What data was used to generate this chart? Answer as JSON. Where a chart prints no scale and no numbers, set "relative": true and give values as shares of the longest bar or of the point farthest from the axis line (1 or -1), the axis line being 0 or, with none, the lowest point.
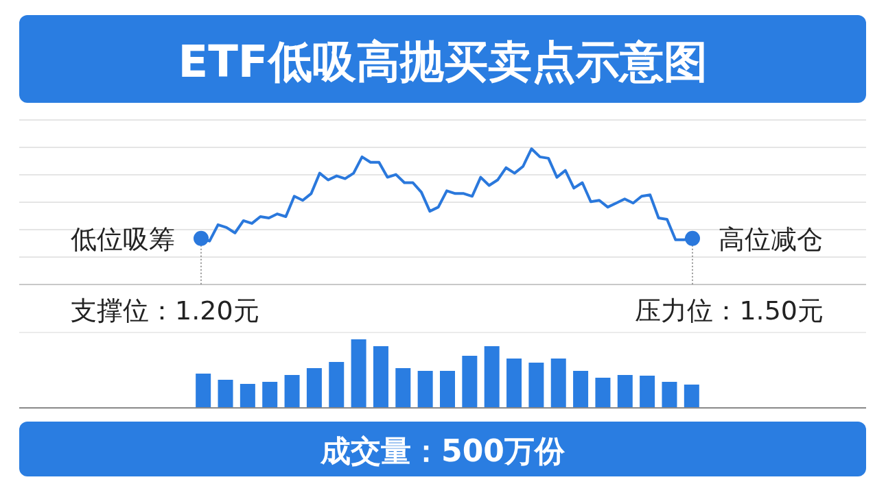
{
  "chart_data": [
    {
      "type": "line",
      "title": "ETF低吸高抛买卖点示意图",
      "relative": true,
      "grid": true,
      "color": "#2a78dc",
      "categories": [
        null,
        null,
        null,
        null,
        null,
        null,
        null,
        null,
        null,
        null,
        null,
        null,
        null,
        null,
        null,
        null,
        null,
        null,
        null,
        null,
        null,
        null,
        null,
        null,
        null,
        null,
        null,
        null,
        null,
        null,
        null,
        null,
        null,
        null,
        null,
        null,
        null,
        null,
        null,
        null,
        null,
        null,
        null,
        null,
        null,
        null,
        null,
        null,
        null,
        null,
        null,
        null,
        null,
        null,
        null,
        null,
        null,
        null,
        null
      ],
      "values": [
        0.34,
        0.32,
        0.44,
        0.42,
        0.38,
        0.47,
        0.45,
        0.5,
        0.49,
        0.52,
        0.5,
        0.65,
        0.62,
        0.67,
        0.82,
        0.77,
        0.8,
        0.78,
        0.82,
        0.94,
        0.9,
        0.9,
        0.79,
        0.81,
        0.75,
        0.75,
        0.68,
        0.54,
        0.57,
        0.69,
        0.67,
        0.67,
        0.65,
        0.79,
        0.73,
        0.77,
        0.86,
        0.82,
        0.87,
        1,
        0.94,
        0.93,
        0.79,
        0.84,
        0.71,
        0.75,
        0.61,
        0.62,
        0.57,
        0.6,
        0.63,
        0.6,
        0.65,
        0.66,
        0.49,
        0.48,
        0.33,
        0.33,
        0.34
      ],
      "annotations": [
        "低位吸筹",
        "高位减仓",
        "支撑位：1.20元",
        "压力位：1.50元"
      ]
    },
    {
      "type": "bar",
      "relative": true,
      "color": "#2a7de1",
      "xlabel": "成交量：500万份",
      "categories": [
        null,
        null,
        null,
        null,
        null,
        null,
        null,
        null,
        null,
        null,
        null,
        null,
        null,
        null,
        null,
        null,
        null,
        null,
        null,
        null,
        null,
        null,
        null
      ],
      "values": [
        0.5,
        0.41,
        0.35,
        0.38,
        0.48,
        0.58,
        0.67,
        1,
        0.9,
        0.58,
        0.54,
        0.54,
        0.76,
        0.9,
        0.72,
        0.66,
        0.72,
        0.54,
        0.44,
        0.48,
        0.47,
        0.38,
        0.34
      ]
    }
  ]
}
